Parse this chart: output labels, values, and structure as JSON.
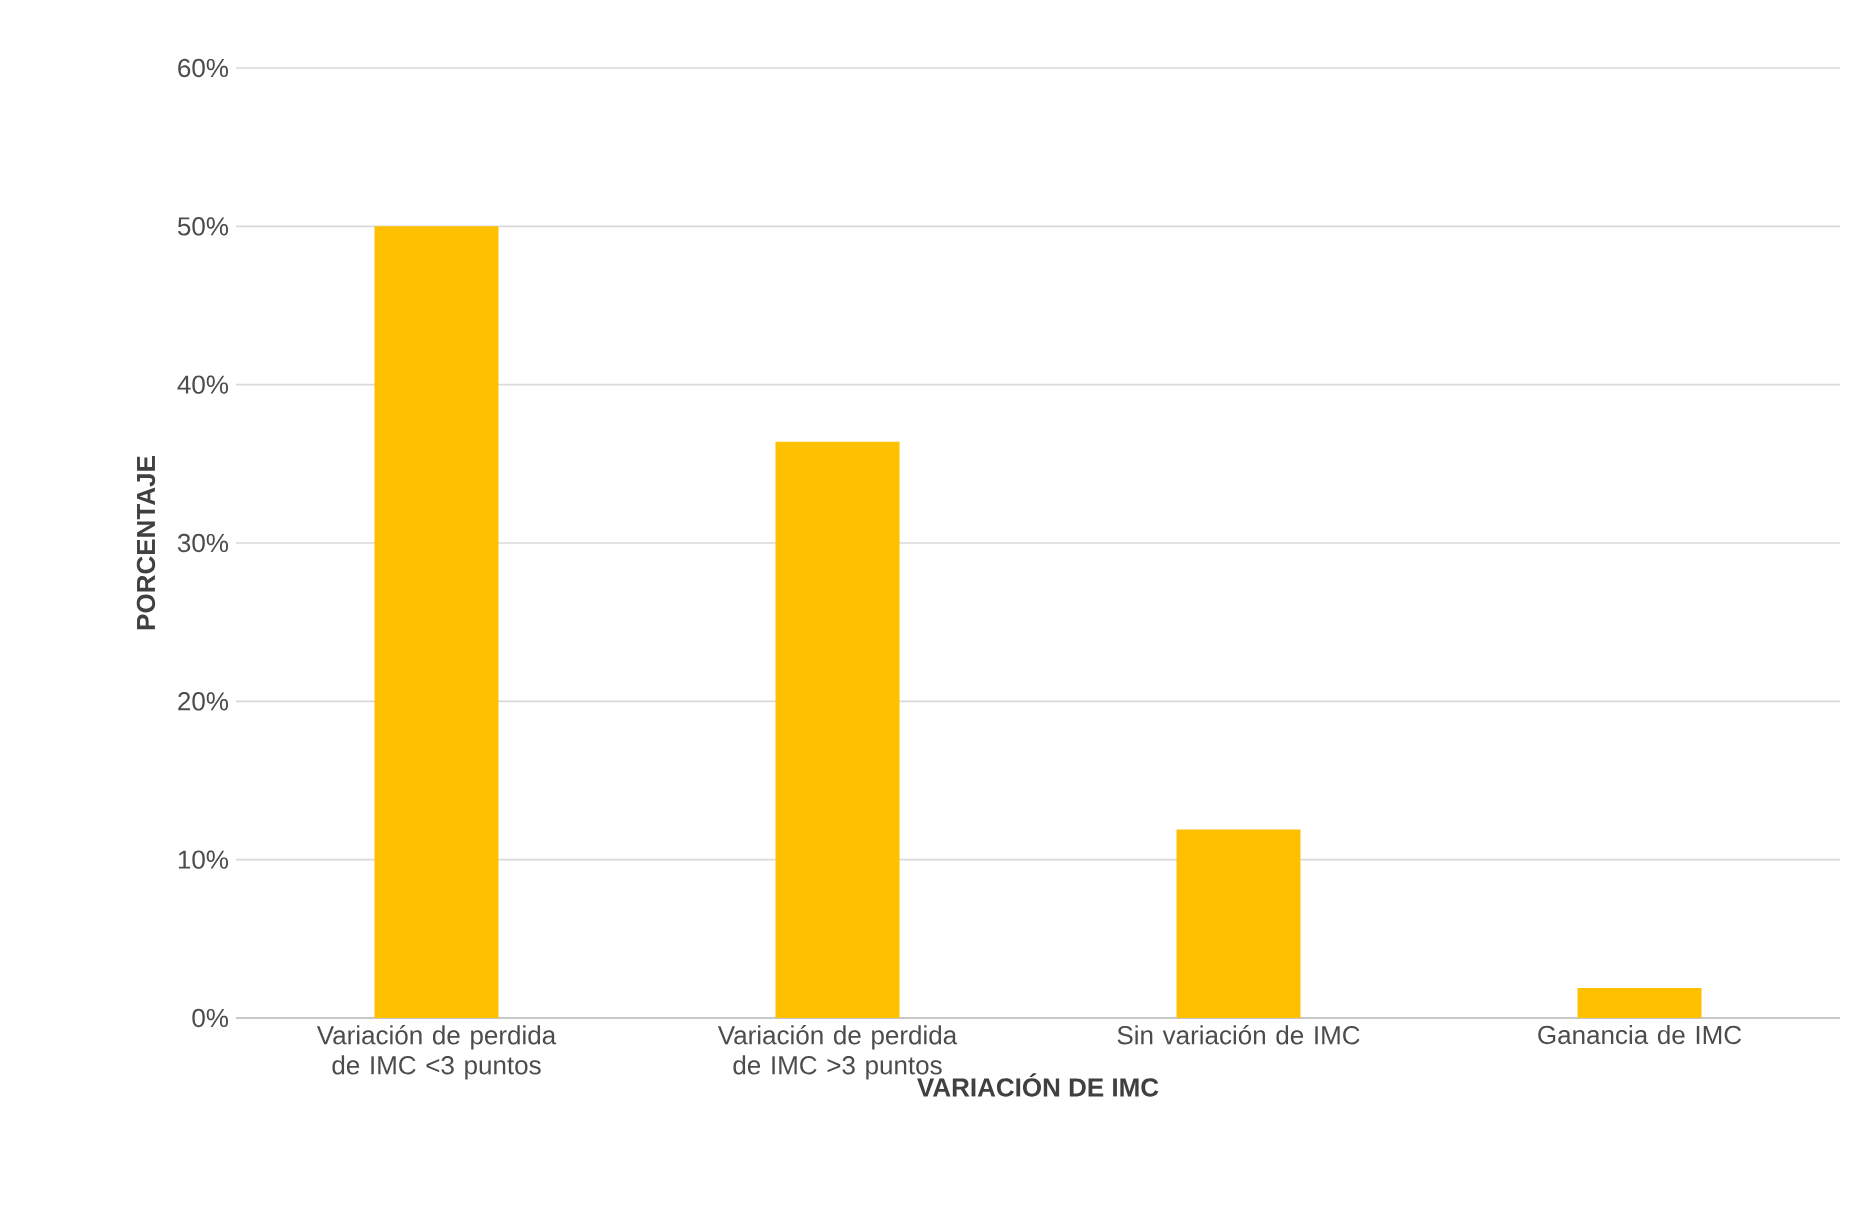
{
  "chart_data": {
    "type": "bar",
    "xlabel": "VARIACIÓN DE IMC",
    "ylabel": "PORCENTAJE",
    "categories": [
      "Variación de perdida de IMC <3 puntos",
      "Variación de perdida de IMC >3 puntos",
      "Sin variación de IMC",
      "Ganancia de IMC"
    ],
    "values": [
      50,
      36.4,
      11.9,
      1.9
    ],
    "color": "#ffc000",
    "ylim": [
      0,
      60
    ],
    "yticks": [
      {
        "value": 0,
        "label": "0%"
      },
      {
        "value": 10,
        "label": "10%"
      },
      {
        "value": 20,
        "label": "20%"
      },
      {
        "value": 30,
        "label": "30%"
      },
      {
        "value": 40,
        "label": "40%"
      },
      {
        "value": 50,
        "label": "50%"
      },
      {
        "value": 60,
        "label": "60%"
      }
    ],
    "grid": "y"
  }
}
